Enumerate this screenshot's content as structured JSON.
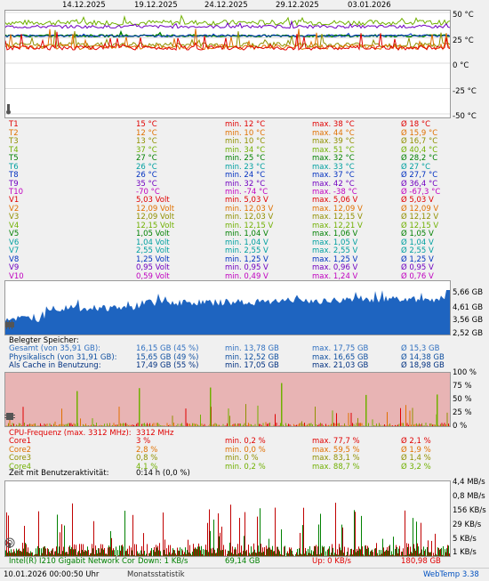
{
  "dates": [
    "14.12.2025",
    "19.12.2025",
    "24.12.2025",
    "29.12.2025",
    "03.01.2026"
  ],
  "temp_axis": [
    "50 °C",
    "25 °C",
    "0 °C",
    "-25 °C",
    "-50 °C"
  ],
  "temps": [
    {
      "name": "T1",
      "val": "15 °C",
      "min": "min. 12 °C",
      "max": "max. 38 °C",
      "avg": "Ø 18 °C",
      "color": "#e00000"
    },
    {
      "name": "T2",
      "val": "12 °C",
      "min": "min. 10 °C",
      "max": "max. 44 °C",
      "avg": "Ø 15,9 °C",
      "color": "#e07000"
    },
    {
      "name": "T3",
      "val": "13 °C",
      "min": "min. 10 °C",
      "max": "max. 39 °C",
      "avg": "Ø 16,7 °C",
      "color": "#909000"
    },
    {
      "name": "T4",
      "val": "37 °C",
      "min": "min. 34 °C",
      "max": "max. 51 °C",
      "avg": "Ø 40,4 °C",
      "color": "#70b000"
    },
    {
      "name": "T5",
      "val": "27 °C",
      "min": "min. 25 °C",
      "max": "max. 32 °C",
      "avg": "Ø 28,2 °C",
      "color": "#008000"
    },
    {
      "name": "T6",
      "val": "26 °C",
      "min": "min. 23 °C",
      "max": "max. 33 °C",
      "avg": "Ø 27 °C",
      "color": "#00a0a0"
    },
    {
      "name": "T8",
      "val": "26 °C",
      "min": "min. 24 °C",
      "max": "max. 37 °C",
      "avg": "Ø 27,7 °C",
      "color": "#0030c0"
    },
    {
      "name": "T9",
      "val": "35 °C",
      "min": "min. 32 °C",
      "max": "max. 42 °C",
      "avg": "Ø 36,4 °C",
      "color": "#7000c0"
    },
    {
      "name": "T10",
      "val": "-70 °C",
      "min": "min. -74 °C",
      "max": "max. -38 °C",
      "avg": "Ø -67,3 °C",
      "color": "#c000c0"
    }
  ],
  "volts": [
    {
      "name": "V1",
      "val": "5,03 Volt",
      "min": "min. 5,03 V",
      "max": "max. 5,06 V",
      "avg": "Ø 5,03 V",
      "color": "#e00000"
    },
    {
      "name": "V2",
      "val": "12,09 Volt",
      "min": "min. 12,03 V",
      "max": "max. 12,09 V",
      "avg": "Ø 12,09 V",
      "color": "#e07000"
    },
    {
      "name": "V3",
      "val": "12,09 Volt",
      "min": "min. 12,03 V",
      "max": "max. 12,15 V",
      "avg": "Ø 12,12 V",
      "color": "#909000"
    },
    {
      "name": "V4",
      "val": "12,15 Volt",
      "min": "min. 12,15 V",
      "max": "max. 12,21 V",
      "avg": "Ø 12,15 V",
      "color": "#70b000"
    },
    {
      "name": "V5",
      "val": "1,05 Volt",
      "min": "min. 1,04 V",
      "max": "max. 1,06 V",
      "avg": "Ø 1,05 V",
      "color": "#008000"
    },
    {
      "name": "V6",
      "val": "1,04 Volt",
      "min": "min. 1,04 V",
      "max": "max. 1,05 V",
      "avg": "Ø 1,04 V",
      "color": "#00a0a0"
    },
    {
      "name": "V7",
      "val": "2,55 Volt",
      "min": "min. 2,55 V",
      "max": "max. 2,55 V",
      "avg": "Ø 2,55 V",
      "color": "#00a0a0"
    },
    {
      "name": "V8",
      "val": "1,25 Volt",
      "min": "min. 1,25 V",
      "max": "max. 1,25 V",
      "avg": "Ø 1,25 V",
      "color": "#0030c0"
    },
    {
      "name": "V9",
      "val": "0,95 Volt",
      "min": "min. 0,95 V",
      "max": "max. 0,96 V",
      "avg": "Ø 0,95 V",
      "color": "#7000c0"
    },
    {
      "name": "V10",
      "val": "0,59 Volt",
      "min": "min. 0,49 V",
      "max": "max. 1,24 V",
      "avg": "Ø 0,76 V",
      "color": "#c000c0"
    }
  ],
  "mem_axis": [
    "5,66 GB",
    "4,61 GB",
    "3,56 GB",
    "2,52 GB"
  ],
  "mem": {
    "header": "Belegter Speicher:",
    "rows": [
      {
        "name": "Gesamt (von 35,91 GB):",
        "val": "16,15 GB (45 %)",
        "min": "min. 13,78 GB",
        "max": "max. 17,75 GB",
        "avg": "Ø 15,3 GB",
        "color": "#3070c0"
      },
      {
        "name": "Physikalisch (von 31,91 GB):",
        "val": "15,65 GB (49 %)",
        "min": "min. 12,52 GB",
        "max": "max. 16,65 GB",
        "avg": "Ø 14,38 GB",
        "color": "#1050a0"
      },
      {
        "name": "Als Cache in Benutzung:",
        "val": "17,49 GB (55 %)",
        "min": "min. 17,05 GB",
        "max": "max. 21,03 GB",
        "avg": "Ø 18,98 GB",
        "color": "#003080"
      }
    ]
  },
  "cpu_axis": [
    "100 %",
    "75 %",
    "50 %",
    "25 %",
    "0 %"
  ],
  "cpu": {
    "header": "CPU-Frequenz (max. 3312 MHz):",
    "header_val": "3312 MHz",
    "rows": [
      {
        "name": "Core1",
        "val": "3 %",
        "min": "min. 0,2 %",
        "max": "max. 77,7 %",
        "avg": "Ø 2,1 %",
        "color": "#e00000"
      },
      {
        "name": "Core2",
        "val": "2,8 %",
        "min": "min. 0,0 %",
        "max": "max. 59,5 %",
        "avg": "Ø 1,9 %",
        "color": "#e07000"
      },
      {
        "name": "Core3",
        "val": "0,8 %",
        "min": "min. 0 %",
        "max": "max. 83,1 %",
        "avg": "Ø 1,4 %",
        "color": "#909000"
      },
      {
        "name": "Core4",
        "val": "4,1 %",
        "min": "min. 0,2 %",
        "max": "max. 88,7 %",
        "avg": "Ø 3,2 %",
        "color": "#70b000"
      }
    ],
    "activity_label": "Zeit mit Benutzeraktivität:",
    "activity_val": "0:14 h (0,0 %)"
  },
  "net_axis": [
    "4,4 MB/s",
    "0,8 MB/s",
    "156 KB/s",
    "29 KB/s",
    "5 KB/s",
    "1 KB/s"
  ],
  "net": {
    "name": "Intel(R) I210 Gigabit Network Cor",
    "down": "Down: 1 KB/s",
    "down_total": "69,14 GB",
    "up": "Up: 0 KB/s",
    "up_total": "180,98 GB",
    "down_color": "#008000",
    "up_color": "#e00000"
  },
  "footer": {
    "time": "10.01.2026 00:00:50 Uhr",
    "mode": "Monatsstatistik",
    "app": "WebTemp 3.38"
  }
}
